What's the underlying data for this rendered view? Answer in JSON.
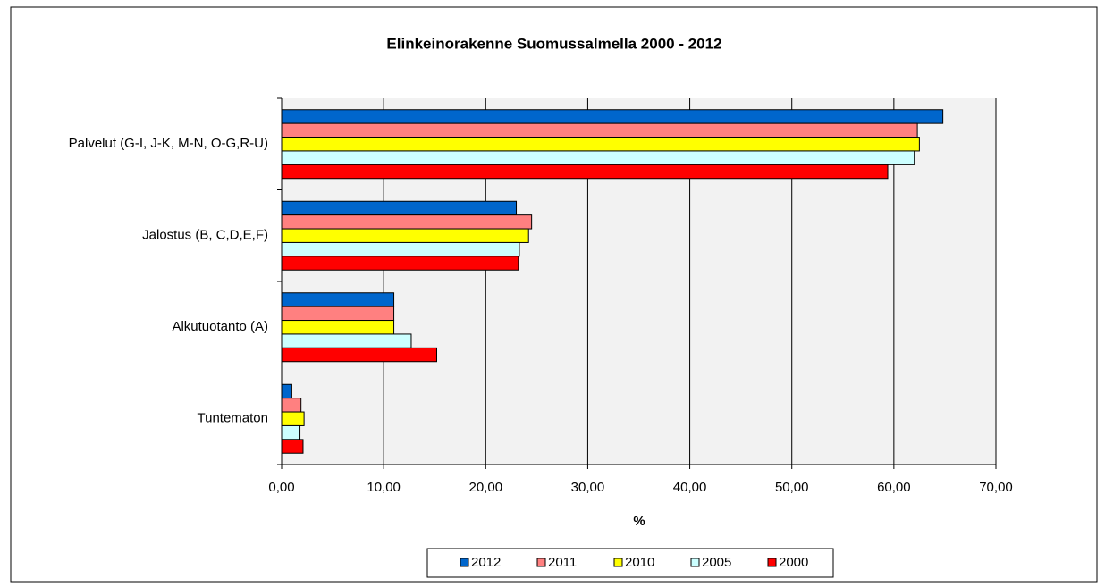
{
  "chart_data": {
    "type": "hbar",
    "title": "Elinkeinorakenne Suomussalmella 2000 - 2012",
    "xlabel": "%",
    "categories": [
      "Palvelut (G-I, J-K, M-N, O-G,R-U)",
      "Jalostus (B, C,D,E,F)",
      "Alkutuotanto (A)",
      "Tuntematon"
    ],
    "series": [
      {
        "name": "2012",
        "color": "#0066cc",
        "values": [
          64.8,
          23.0,
          11.0,
          1.0
        ]
      },
      {
        "name": "2011",
        "color": "#ff8080",
        "values": [
          62.3,
          24.5,
          11.0,
          1.9
        ]
      },
      {
        "name": "2010",
        "color": "#ffff00",
        "values": [
          62.5,
          24.2,
          11.0,
          2.2
        ]
      },
      {
        "name": "2005",
        "color": "#ccffff",
        "values": [
          62.0,
          23.3,
          12.7,
          1.8
        ]
      },
      {
        "name": "2000",
        "color": "#ff0000",
        "values": [
          59.4,
          23.2,
          15.2,
          2.1
        ]
      }
    ],
    "xlim": [
      0,
      70
    ],
    "xticks": [
      {
        "value": 0,
        "label": "0,00"
      },
      {
        "value": 10,
        "label": "10,00"
      },
      {
        "value": 20,
        "label": "20,00"
      },
      {
        "value": 30,
        "label": "30,00"
      },
      {
        "value": 40,
        "label": "40,00"
      },
      {
        "value": 50,
        "label": "50,00"
      },
      {
        "value": 60,
        "label": "60,00"
      },
      {
        "value": 70,
        "label": "70,00"
      }
    ],
    "grid": true,
    "legend": "bottom"
  }
}
